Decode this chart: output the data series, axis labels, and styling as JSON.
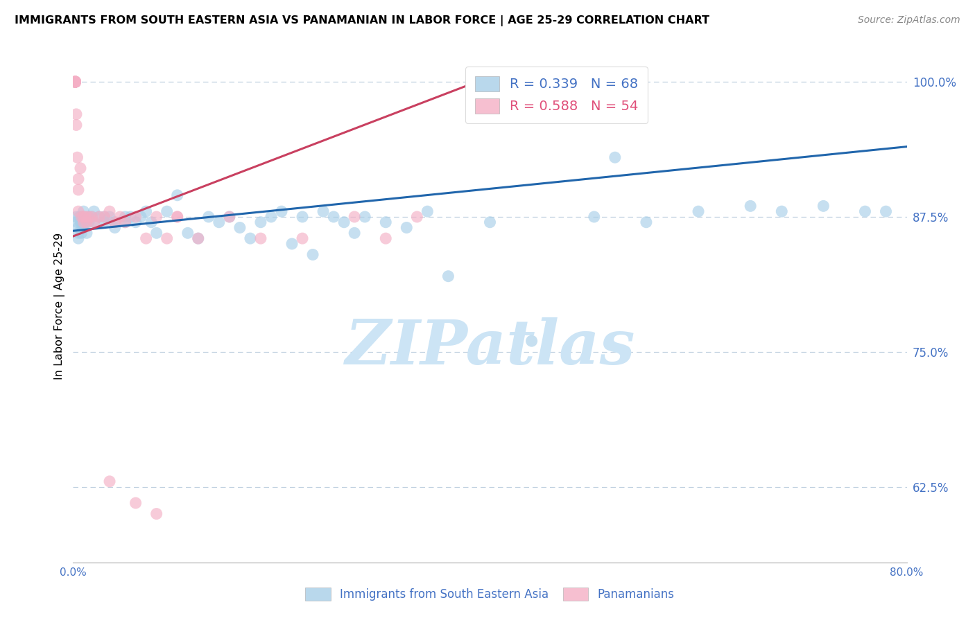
{
  "title": "IMMIGRANTS FROM SOUTH EASTERN ASIA VS PANAMANIAN IN LABOR FORCE | AGE 25-29 CORRELATION CHART",
  "source": "Source: ZipAtlas.com",
  "ylabel": "In Labor Force | Age 25-29",
  "xlim": [
    0.0,
    0.8
  ],
  "ylim": [
    0.555,
    1.03
  ],
  "yticks": [
    0.625,
    0.75,
    0.875,
    1.0
  ],
  "ytick_labels": [
    "62.5%",
    "75.0%",
    "87.5%",
    "100.0%"
  ],
  "xtick_positions": [
    0.0,
    0.1,
    0.2,
    0.3,
    0.4,
    0.5,
    0.6,
    0.7,
    0.8
  ],
  "xtick_labels": [
    "0.0%",
    "",
    "",
    "",
    "",
    "",
    "",
    "",
    "80.0%"
  ],
  "blue_R": 0.339,
  "blue_N": 68,
  "pink_R": 0.588,
  "pink_N": 54,
  "blue_scatter_color": "#a8cfe8",
  "pink_scatter_color": "#f4afc5",
  "blue_line_color": "#2166ac",
  "pink_line_color": "#c94060",
  "axis_tick_color": "#4472c4",
  "grid_color": "#c0d0e0",
  "watermark_text": "ZIPatlas",
  "watermark_color": "#cce4f5",
  "legend_blue_label": "Immigrants from South Eastern Asia",
  "legend_pink_label": "Panamanians",
  "blue_scatter_x": [
    0.003,
    0.004,
    0.005,
    0.005,
    0.005,
    0.006,
    0.007,
    0.008,
    0.008,
    0.009,
    0.01,
    0.01,
    0.012,
    0.013,
    0.015,
    0.015,
    0.018,
    0.02,
    0.02,
    0.025,
    0.03,
    0.03,
    0.035,
    0.04,
    0.04,
    0.05,
    0.05,
    0.055,
    0.06,
    0.065,
    0.07,
    0.075,
    0.08,
    0.09,
    0.1,
    0.11,
    0.12,
    0.13,
    0.14,
    0.15,
    0.16,
    0.17,
    0.18,
    0.19,
    0.2,
    0.21,
    0.22,
    0.23,
    0.24,
    0.25,
    0.26,
    0.27,
    0.28,
    0.3,
    0.32,
    0.34,
    0.36,
    0.4,
    0.44,
    0.5,
    0.52,
    0.55,
    0.6,
    0.65,
    0.68,
    0.72,
    0.76,
    0.78
  ],
  "blue_scatter_y": [
    0.875,
    0.87,
    0.865,
    0.86,
    0.855,
    0.875,
    0.87,
    0.87,
    0.86,
    0.865,
    0.88,
    0.875,
    0.87,
    0.86,
    0.875,
    0.87,
    0.875,
    0.88,
    0.87,
    0.875,
    0.875,
    0.87,
    0.875,
    0.87,
    0.865,
    0.875,
    0.87,
    0.875,
    0.87,
    0.875,
    0.88,
    0.87,
    0.86,
    0.88,
    0.895,
    0.86,
    0.855,
    0.875,
    0.87,
    0.875,
    0.865,
    0.855,
    0.87,
    0.875,
    0.88,
    0.85,
    0.875,
    0.84,
    0.88,
    0.875,
    0.87,
    0.86,
    0.875,
    0.87,
    0.865,
    0.88,
    0.82,
    0.87,
    0.76,
    0.875,
    0.93,
    0.87,
    0.88,
    0.885,
    0.88,
    0.885,
    0.88,
    0.88
  ],
  "pink_scatter_x": [
    0.002,
    0.002,
    0.002,
    0.002,
    0.002,
    0.002,
    0.002,
    0.002,
    0.002,
    0.002,
    0.002,
    0.002,
    0.002,
    0.002,
    0.002,
    0.002,
    0.002,
    0.003,
    0.003,
    0.004,
    0.005,
    0.005,
    0.005,
    0.007,
    0.008,
    0.01,
    0.01,
    0.012,
    0.013,
    0.015,
    0.018,
    0.02,
    0.025,
    0.03,
    0.035,
    0.04,
    0.045,
    0.05,
    0.06,
    0.07,
    0.08,
    0.09,
    0.1,
    0.12,
    0.15,
    0.18,
    0.22,
    0.27,
    0.3,
    0.33,
    0.035,
    0.06,
    0.08,
    0.1
  ],
  "pink_scatter_y": [
    1.0,
    1.0,
    1.0,
    1.0,
    1.0,
    1.0,
    1.0,
    1.0,
    1.0,
    1.0,
    1.0,
    1.0,
    1.0,
    1.0,
    1.0,
    1.0,
    1.0,
    0.97,
    0.96,
    0.93,
    0.91,
    0.9,
    0.88,
    0.92,
    0.875,
    0.875,
    0.87,
    0.875,
    0.87,
    0.875,
    0.875,
    0.87,
    0.875,
    0.875,
    0.88,
    0.87,
    0.875,
    0.87,
    0.875,
    0.855,
    0.875,
    0.855,
    0.875,
    0.855,
    0.875,
    0.855,
    0.855,
    0.875,
    0.855,
    0.875,
    0.63,
    0.61,
    0.6,
    0.875
  ],
  "blue_trend_x": [
    0.0,
    0.8
  ],
  "blue_trend_y": [
    0.862,
    0.94
  ],
  "pink_trend_x": [
    0.0,
    0.42
  ],
  "pink_trend_y": [
    0.857,
    1.012
  ]
}
